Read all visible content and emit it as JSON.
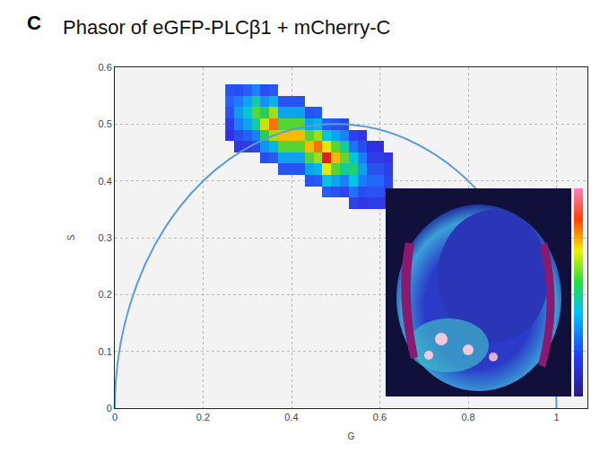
{
  "chart_data": {
    "type": "heatmap",
    "panel": "C",
    "title": "Phasor of eGFP-PLCβ1 + mCherry-C",
    "x_label": "G",
    "y_label": "S",
    "xlim": [
      0,
      1.07
    ],
    "ylim": [
      0,
      0.6
    ],
    "xticks": [
      0,
      0.2,
      0.4,
      0.6,
      0.8,
      1
    ],
    "yticks": [
      0,
      0.1,
      0.2,
      0.3,
      0.4,
      0.5,
      0.6
    ],
    "grid": true,
    "cells": {
      "x": [
        0.26,
        0.28,
        0.3,
        0.32,
        0.34,
        0.36,
        0.38,
        0.4,
        0.42,
        0.44,
        0.46,
        0.48,
        0.5,
        0.52,
        0.54,
        0.56,
        0.58,
        0.6,
        0.62
      ],
      "y": [
        0.36,
        0.38,
        0.4,
        0.42,
        0.44,
        0.46,
        0.48,
        0.5,
        0.52,
        0.54,
        0.56
      ],
      "z": [
        [
          null,
          null,
          null,
          null,
          null,
          null,
          null,
          null,
          null,
          null,
          null,
          null,
          null,
          null,
          0.4,
          0.2,
          0.3,
          0.3,
          0.2
        ],
        [
          null,
          null,
          null,
          null,
          null,
          null,
          null,
          null,
          null,
          null,
          null,
          0.9,
          0.7,
          0.5,
          1.2,
          0.6,
          0.7,
          0.7,
          0.4
        ],
        [
          null,
          null,
          null,
          null,
          null,
          null,
          null,
          null,
          null,
          0.7,
          0.8,
          2.7,
          2.1,
          1.5,
          2.8,
          1.4,
          1,
          1,
          0.5
        ],
        [
          null,
          null,
          null,
          null,
          null,
          null,
          0.7,
          0.7,
          0.7,
          2.1,
          2.4,
          6.3,
          4.9,
          3.5,
          4,
          2,
          0.7,
          0.7,
          0.4
        ],
        [
          null,
          null,
          null,
          null,
          0.6,
          0.8,
          2.1,
          2.1,
          2.1,
          4.9,
          5.6,
          9,
          7,
          5,
          2.8,
          1.4,
          0.3,
          0.3,
          0.2
        ],
        [
          null,
          0.2,
          0.3,
          0.5,
          1.8,
          2.4,
          4.9,
          4.9,
          4.9,
          7,
          8,
          6.3,
          4.9,
          3.5,
          1.2,
          0.6,
          0.1,
          0.1,
          null
        ],
        [
          0.1,
          0.6,
          0.9,
          1.5,
          4.2,
          5.6,
          7,
          7,
          7,
          4.9,
          5.6,
          2.7,
          2.1,
          1.5,
          0.4,
          0.2,
          null,
          null,
          null
        ],
        [
          0.3,
          1.4,
          2.1,
          3.5,
          6,
          8,
          4.9,
          4.9,
          4.9,
          2.1,
          2.4,
          0.9,
          0.7,
          0.5,
          null,
          null,
          null,
          null,
          null
        ],
        [
          0.7,
          2,
          3,
          5,
          4.2,
          5.6,
          2.1,
          2.1,
          2.1,
          0.7,
          0.8,
          null,
          null,
          null,
          null,
          null,
          null,
          null,
          null
        ],
        [
          1,
          1.4,
          2.1,
          3.5,
          1.8,
          2.4,
          0.7,
          0.7,
          0.7,
          null,
          null,
          null,
          null,
          null,
          null,
          null,
          null,
          null,
          null
        ],
        [
          0.7,
          0.6,
          0.9,
          1.5,
          0.6,
          0.8,
          null,
          null,
          null,
          null,
          null,
          null,
          null,
          null,
          null,
          null,
          null,
          null,
          null
        ]
      ]
    },
    "semicircle": {
      "center": [
        0.5,
        0
      ],
      "radius": 0.5,
      "color": "#5b9bd5"
    }
  }
}
